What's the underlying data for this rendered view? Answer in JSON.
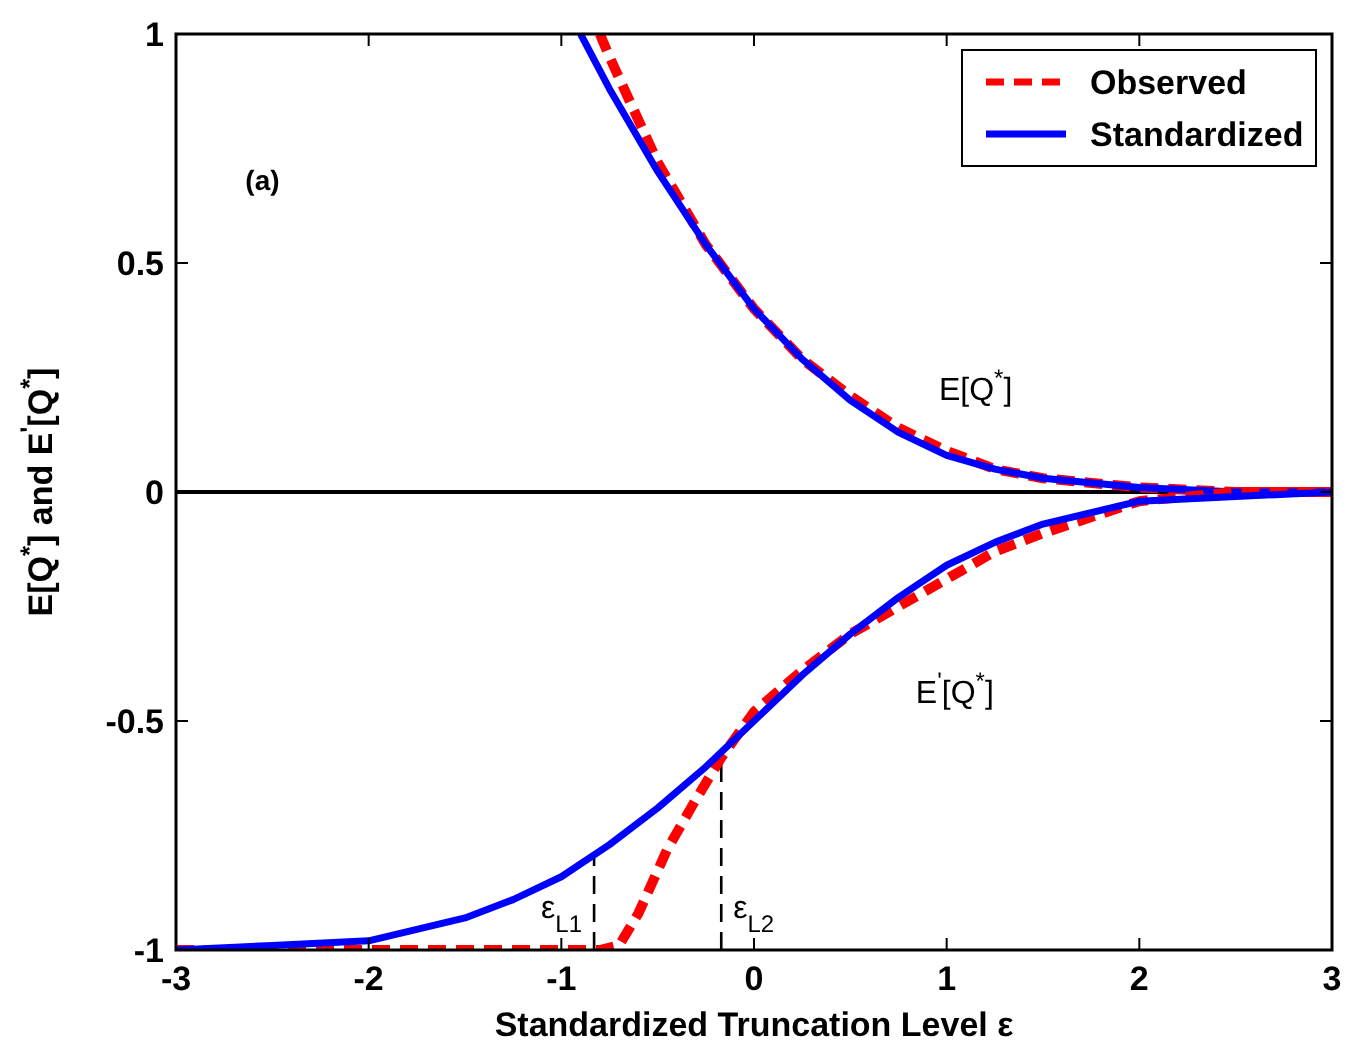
{
  "chart_data": {
    "type": "line",
    "xlabel": "Standardized Truncation Level ε",
    "ylabel": "E[Q$^{*}$] and E$^{'}$[Q$^{*}$]",
    "xlim": [
      -3,
      3
    ],
    "ylim": [
      -1,
      1
    ],
    "xticks": [
      -3,
      -2,
      -1,
      0,
      1,
      2,
      3
    ],
    "yticks": [
      -1,
      -0.5,
      0,
      0.5,
      1
    ],
    "legend": "top right",
    "grid": false,
    "series": [
      {
        "name": "Observed",
        "color": "#ff0000",
        "line_style": "dashed",
        "x": [
          -0.8,
          -0.75,
          -0.5,
          -0.25,
          0,
          0.25,
          0.5,
          0.75,
          1,
          1.25,
          1.5,
          2,
          2.5,
          3
        ],
        "values": [
          1,
          0.95,
          0.72,
          0.54,
          0.4,
          0.29,
          0.21,
          0.14,
          0.09,
          0.05,
          0.03,
          0.01,
          0,
          0
        ]
      },
      {
        "name": "Standardized",
        "color": "#0000ff",
        "line_style": "solid",
        "x": [
          -0.9,
          -0.8,
          -0.75,
          -0.5,
          -0.25,
          0,
          0.25,
          0.5,
          0.75,
          1,
          1.25,
          1.5,
          2,
          2.5,
          3
        ],
        "values": [
          1,
          0.92,
          0.88,
          0.7,
          0.54,
          0.4,
          0.29,
          0.2,
          0.13,
          0.08,
          0.05,
          0.03,
          0.01,
          0,
          0
        ]
      },
      {
        "color": "#ff0000",
        "line_style": "dashed",
        "x": [
          -3,
          -0.8,
          -0.7,
          -0.6,
          -0.45,
          -0.3,
          -0.17,
          0,
          0.25,
          0.5,
          0.75,
          1,
          1.25,
          1.5,
          2,
          2.5,
          3
        ],
        "values": [
          -1,
          -1,
          -0.99,
          -0.92,
          -0.78,
          -0.67,
          -0.58,
          -0.48,
          -0.39,
          -0.31,
          -0.25,
          -0.19,
          -0.13,
          -0.09,
          -0.02,
          0,
          0
        ]
      },
      {
        "color": "#0000ff",
        "line_style": "solid",
        "x": [
          -3,
          -2.5,
          -2,
          -1.5,
          -1.25,
          -1,
          -0.75,
          -0.5,
          -0.25,
          0,
          0.25,
          0.5,
          0.75,
          1,
          1.25,
          1.5,
          2,
          2.5,
          3
        ],
        "values": [
          -1,
          -0.99,
          -0.98,
          -0.93,
          -0.89,
          -0.84,
          -0.77,
          -0.69,
          -0.6,
          -0.5,
          -0.4,
          -0.31,
          -0.23,
          -0.16,
          -0.11,
          -0.07,
          -0.02,
          -0.01,
          0
        ]
      }
    ],
    "ref_lines": [
      {
        "axis": "y",
        "value": 0,
        "color": "#000000"
      },
      {
        "axis": "x",
        "value": -0.83,
        "label": "ε$_{L1}$",
        "color": "#000000",
        "line_style": "dashed"
      },
      {
        "axis": "x",
        "value": -0.17,
        "label": "ε$_{L2}$",
        "color": "#000000",
        "line_style": "dashed"
      }
    ],
    "annotations": [
      "(a)",
      "E[Q$^{*}$]",
      "E$^{'}$[Q$^{*}$]"
    ]
  }
}
